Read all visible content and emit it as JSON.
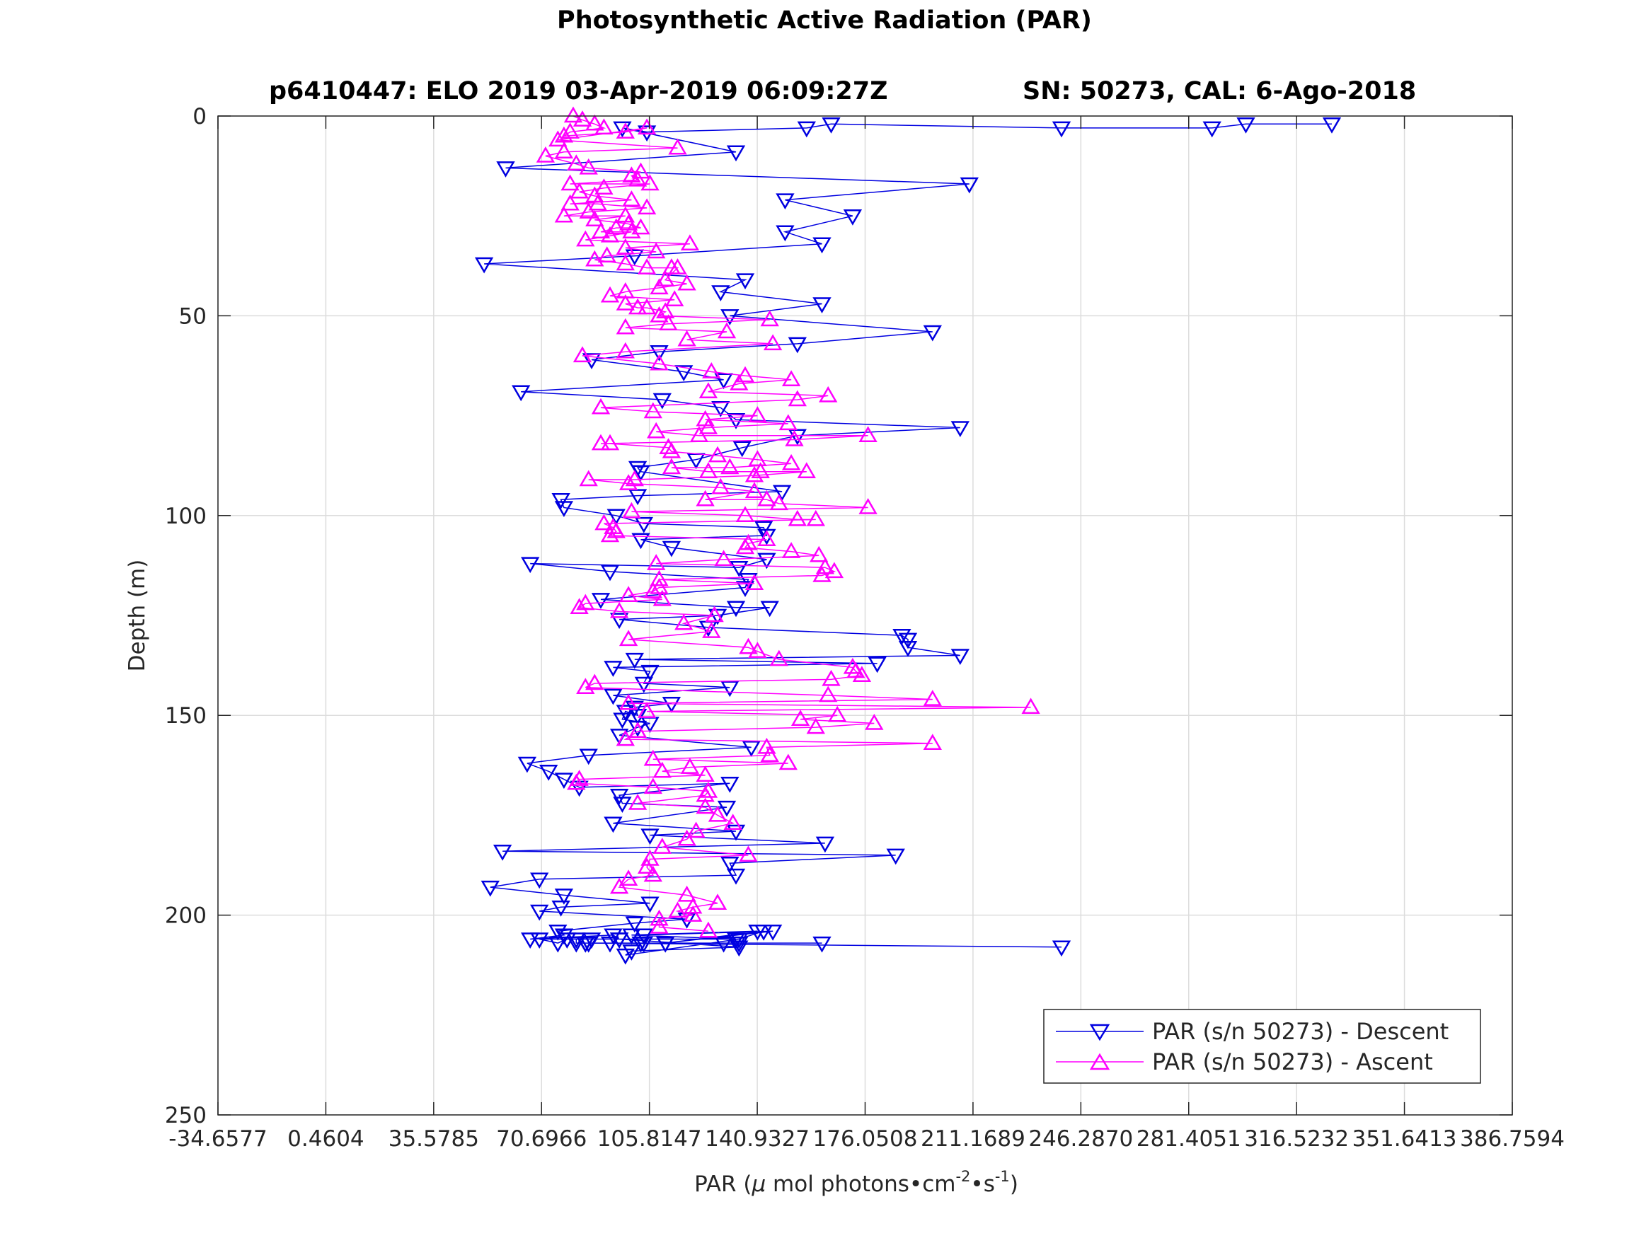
{
  "chart_data": {
    "type": "line",
    "title": "Photosynthetic Active Radiation (PAR)",
    "subtitle_left": "p6410447: ELO 2019 03-Apr-2019 06:09:27Z",
    "subtitle_right": "SN: 50273, CAL: 6-Ago-2018",
    "xlabel": {
      "base": "PAR (",
      "mu": "μ",
      "mid1": " mol photons",
      "bullet1": "•",
      "cm": "cm",
      "exp1": "-2",
      "bullet2": "•",
      "s": "s",
      "exp2": "-1",
      "close": ")"
    },
    "ylabel": "Depth (m)",
    "xlim": [
      -34.6577,
      386.7594
    ],
    "ylim": [
      0,
      250
    ],
    "y_reversed": true,
    "grid": true,
    "xticks": [
      -34.6577,
      0.4604,
      35.5785,
      70.6966,
      105.8147,
      140.9327,
      176.0508,
      211.1689,
      246.287,
      281.4051,
      316.5232,
      351.6413,
      386.7594
    ],
    "xtick_labels": [
      "-34.6577",
      "0.4604",
      "35.5785",
      "70.6966",
      "105.8147",
      "140.9327",
      "176.0508",
      "211.1689",
      "246.2870",
      "281.4051",
      "316.5232",
      "351.6413",
      "386.7594"
    ],
    "yticks": [
      0,
      50,
      100,
      150,
      200,
      250
    ],
    "ytick_labels": [
      "0",
      "50",
      "100",
      "150",
      "200",
      "250"
    ],
    "legend_position": "bottom-right",
    "series": [
      {
        "name": "PAR (s/n 50273) - Descent",
        "color": "#0000e0",
        "marker": "triangle-down",
        "x": [
          328,
          300,
          289,
          240,
          165,
          157,
          105,
          97,
          134,
          59,
          210,
          150,
          172,
          150,
          162,
          101,
          52,
          137,
          129,
          162,
          132,
          198,
          154,
          109,
          87,
          117,
          130,
          64,
          110,
          129,
          134,
          207,
          154,
          136,
          121,
          102,
          103,
          149,
          102,
          77,
          78,
          95,
          104,
          143,
          144,
          103,
          113,
          144,
          135,
          67,
          93,
          138,
          137,
          90,
          134,
          145,
          128,
          96,
          125,
          188,
          190,
          190,
          207,
          101,
          180,
          94,
          106,
          104,
          132,
          94,
          113,
          101,
          102,
          98,
          97,
          106,
          102,
          96,
          139,
          86,
          66,
          73,
          78,
          83,
          132,
          96,
          97,
          131,
          94,
          134,
          106,
          163,
          58,
          186,
          132,
          134,
          70,
          54,
          78,
          106,
          77,
          70,
          118,
          101,
          76,
          78,
          67,
          94,
          96,
          135,
          100,
          98,
          135,
          143,
          111,
          146,
          104,
          141,
          100,
          134,
          87,
          79,
          76,
          70,
          96,
          82,
          82,
          86,
          93,
          103,
          111,
          130,
          135,
          162,
          104,
          85,
          85,
          86,
          85,
          240
        ],
        "y": [
          2,
          2,
          3,
          3,
          2,
          3,
          4,
          3,
          9,
          13,
          17,
          21,
          25,
          29,
          32,
          35,
          37,
          41,
          44,
          47,
          50,
          54,
          57,
          59,
          61,
          64,
          66,
          69,
          71,
          73,
          76,
          78,
          80,
          83,
          86,
          88,
          89,
          94,
          95,
          96,
          98,
          100,
          102,
          103,
          105,
          106,
          108,
          111,
          113,
          112,
          114,
          116,
          118,
          121,
          123,
          123,
          125,
          126,
          128,
          130,
          131,
          133,
          135,
          136,
          137,
          138,
          139,
          142,
          143,
          145,
          147,
          148,
          150,
          149,
          151,
          152,
          153,
          155,
          158,
          160,
          162,
          164,
          166,
          168,
          167,
          170,
          172,
          173,
          177,
          179,
          180,
          182,
          184,
          185,
          187,
          190,
          191,
          193,
          195,
          197,
          198,
          199,
          201,
          202,
          204,
          205,
          206,
          205,
          206,
          208,
          209,
          210,
          206,
          204,
          207,
          204,
          205,
          204,
          205,
          206,
          206,
          206,
          207,
          206,
          206,
          206,
          207,
          207,
          207,
          207,
          207,
          207,
          207,
          207,
          207,
          207,
          207,
          207,
          207,
          208
        ]
      },
      {
        "name": "PAR (s/n 50273) - Ascent",
        "color": "#ff00ff",
        "marker": "triangle-up",
        "x": [
          81,
          84,
          88,
          91,
          80,
          78,
          98,
          105,
          76,
          115,
          78,
          72,
          82,
          86,
          103,
          100,
          102,
          80,
          106,
          91,
          83,
          88,
          100,
          80,
          89,
          105,
          86,
          78,
          98,
          88,
          99,
          103,
          95,
          90,
          100,
          93,
          85,
          119,
          98,
          108,
          92,
          88,
          98,
          105,
          113,
          115,
          111,
          118,
          109,
          98,
          93,
          114,
          98,
          102,
          105,
          111,
          109,
          145,
          112,
          98,
          131,
          118,
          146,
          98,
          84,
          109,
          126,
          137,
          152,
          135,
          125,
          164,
          154,
          90,
          107,
          141,
          124,
          151,
          125,
          108,
          122,
          177,
          153,
          90,
          93,
          112,
          113,
          128,
          141,
          152,
          132,
          113,
          125,
          142,
          157,
          140,
          101,
          86,
          99,
          129,
          140,
          124,
          144,
          148,
          177,
          100,
          137,
          154,
          160,
          91,
          94,
          95,
          93,
          144,
          138,
          137,
          152,
          161,
          130,
          108,
          163,
          166,
          162,
          109,
          140,
          109,
          107,
          99,
          110,
          85,
          83,
          96,
          127,
          117,
          126,
          99,
          138,
          141,
          148,
          172,
          173,
          175,
          165,
          88,
          85,
          164,
          198,
          99,
          230,
          105,
          167,
          155,
          179,
          160,
          102,
          98,
          198,
          144,
          145,
          107,
          151,
          119,
          110,
          124,
          83,
          82,
          107,
          125,
          124,
          102,
          124,
          128,
          133,
          121,
          118,
          110,
          138,
          106,
          105,
          107,
          99,
          96,
          118,
          128,
          120,
          115,
          120,
          109,
          109,
          125
        ],
        "y": [
          0,
          1,
          2,
          3,
          4,
          5,
          4,
          3,
          6,
          8,
          9,
          10,
          12,
          13,
          14,
          15,
          16,
          17,
          17,
          18,
          19,
          20,
          21,
          22,
          22,
          23,
          24,
          25,
          25,
          26,
          27,
          28,
          28,
          29,
          29,
          30,
          31,
          32,
          33,
          34,
          35,
          36,
          37,
          38,
          38,
          38,
          41,
          42,
          43,
          44,
          45,
          46,
          47,
          48,
          48,
          49,
          50,
          51,
          52,
          53,
          54,
          56,
          57,
          59,
          60,
          62,
          64,
          65,
          66,
          67,
          69,
          70,
          71,
          73,
          74,
          75,
          76,
          77,
          78,
          79,
          80,
          80,
          81,
          82,
          82,
          83,
          84,
          85,
          86,
          87,
          88,
          88,
          89,
          89,
          89,
          90,
          91,
          91,
          92,
          93,
          94,
          96,
          96,
          97,
          98,
          99,
          100,
          101,
          101,
          102,
          103,
          104,
          105,
          106,
          107,
          108,
          109,
          110,
          111,
          112,
          113,
          114,
          115,
          116,
          117,
          118,
          119,
          120,
          121,
          122,
          123,
          124,
          125,
          127,
          129,
          131,
          133,
          134,
          136,
          138,
          139,
          140,
          141,
          142,
          143,
          145,
          146,
          147,
          148,
          149,
          150,
          151,
          152,
          153,
          154,
          156,
          157,
          158,
          160,
          161,
          162,
          163,
          164,
          165,
          166,
          167,
          168,
          169,
          170,
          172,
          173,
          175,
          177,
          179,
          181,
          183,
          185,
          186,
          188,
          190,
          191,
          193,
          195,
          197,
          198,
          199,
          200,
          201,
          203,
          204
        ]
      }
    ]
  }
}
